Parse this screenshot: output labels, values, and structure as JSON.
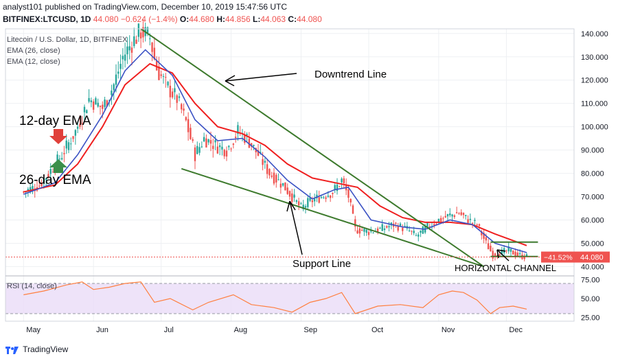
{
  "header": {
    "published_line": "analyst101 published on TradingView.com, December 10, 2019 15:47:56 UTC",
    "symbol": "BITFINEX:LTCUSD, 1D",
    "last": "44.080",
    "change": "−0.624 (−1.4%)",
    "o_label": "O:",
    "o": "44.680",
    "h_label": "H:",
    "h": "44.856",
    "l_label": "L:",
    "l": "44.063",
    "c_label": "C:",
    "c": "44.080"
  },
  "legend": {
    "title": "Litecoin / U.S. Dollar, 1D, BITFINEX",
    "ema26": "EMA (26, close)",
    "ema12": "EMA (12, close)",
    "rsi": "RSI (14, close)"
  },
  "annotations": {
    "downtrend": "Downtrend Line",
    "ema12": "12-day EMA",
    "ema26": "26-day EMA",
    "support": "Support Line",
    "channel": "HORIZONTAL CHANNEL"
  },
  "price_badge": {
    "pct": "−41.52%",
    "price": "44.080"
  },
  "footer": {
    "brand": "TradingView"
  },
  "colors": {
    "ema26": "#ef1f1f",
    "ema12": "#3b52c4",
    "trendline": "#3d7a2d",
    "up": "#26a69a",
    "down": "#ef5350",
    "rsi": "#ff7f3f",
    "rsi_band": "#eadcf7"
  },
  "chart_data": [
    {
      "type": "candlestick",
      "title": "Litecoin / U.S. Dollar, 1D, BITFINEX",
      "x": [
        "May",
        "Jun",
        "Jul",
        "Aug",
        "Sep",
        "Oct",
        "Nov",
        "Dec"
      ],
      "y_ticks": [
        40,
        50,
        60,
        70,
        80,
        90,
        100,
        110,
        120,
        130,
        140
      ],
      "y_tick_labels": [
        "40.000",
        "50.000",
        "60.000",
        "70.000",
        "80.000",
        "90.000",
        "100.000",
        "110.000",
        "120.000",
        "130.000",
        "140.000"
      ],
      "ylim": [
        36,
        142
      ],
      "grid": true,
      "close_path": [
        [
          "2019-05-01",
          72
        ],
        [
          "2019-05-08",
          75
        ],
        [
          "2019-05-12",
          80
        ],
        [
          "2019-05-18",
          88
        ],
        [
          "2019-05-24",
          98
        ],
        [
          "2019-05-30",
          112
        ],
        [
          "2019-06-05",
          108
        ],
        [
          "2019-06-10",
          118
        ],
        [
          "2019-06-14",
          130
        ],
        [
          "2019-06-18",
          136
        ],
        [
          "2019-06-22",
          141
        ],
        [
          "2019-06-26",
          138
        ],
        [
          "2019-06-29",
          125
        ],
        [
          "2019-07-03",
          118
        ],
        [
          "2019-07-08",
          112
        ],
        [
          "2019-07-12",
          102
        ],
        [
          "2019-07-16",
          88
        ],
        [
          "2019-07-20",
          95
        ],
        [
          "2019-07-25",
          92
        ],
        [
          "2019-07-30",
          90
        ],
        [
          "2019-08-04",
          98
        ],
        [
          "2019-08-08",
          95
        ],
        [
          "2019-08-13",
          88
        ],
        [
          "2019-08-18",
          80
        ],
        [
          "2019-08-24",
          75
        ],
        [
          "2019-08-28",
          70
        ],
        [
          "2019-09-01",
          65
        ],
        [
          "2019-09-05",
          68
        ],
        [
          "2019-09-10",
          70
        ],
        [
          "2019-09-15",
          72
        ],
        [
          "2019-09-19",
          77
        ],
        [
          "2019-09-22",
          70
        ],
        [
          "2019-09-25",
          56
        ],
        [
          "2019-10-01",
          55
        ],
        [
          "2019-10-06",
          56
        ],
        [
          "2019-10-12",
          58
        ],
        [
          "2019-10-18",
          56
        ],
        [
          "2019-10-22",
          53
        ],
        [
          "2019-10-27",
          57
        ],
        [
          "2019-11-01",
          60
        ],
        [
          "2019-11-06",
          62
        ],
        [
          "2019-11-10",
          63
        ],
        [
          "2019-11-14",
          60
        ],
        [
          "2019-11-18",
          58
        ],
        [
          "2019-11-22",
          50
        ],
        [
          "2019-11-25",
          45
        ],
        [
          "2019-11-29",
          46
        ],
        [
          "2019-12-02",
          47
        ],
        [
          "2019-12-06",
          45
        ],
        [
          "2019-12-10",
          44.08
        ]
      ],
      "ema26": [
        [
          "2019-05-01",
          72
        ],
        [
          "2019-05-15",
          75
        ],
        [
          "2019-05-25",
          84
        ],
        [
          "2019-06-05",
          100
        ],
        [
          "2019-06-15",
          118
        ],
        [
          "2019-06-26",
          127
        ],
        [
          "2019-07-06",
          123
        ],
        [
          "2019-07-16",
          110
        ],
        [
          "2019-07-26",
          100
        ],
        [
          "2019-08-06",
          97
        ],
        [
          "2019-08-16",
          92
        ],
        [
          "2019-08-26",
          84
        ],
        [
          "2019-09-06",
          78
        ],
        [
          "2019-09-16",
          76
        ],
        [
          "2019-09-26",
          74
        ],
        [
          "2019-10-06",
          66
        ],
        [
          "2019-10-16",
          61
        ],
        [
          "2019-10-26",
          59
        ],
        [
          "2019-11-06",
          59
        ],
        [
          "2019-11-16",
          58
        ],
        [
          "2019-11-26",
          54
        ],
        [
          "2019-12-10",
          49
        ]
      ],
      "ema12": [
        [
          "2019-05-01",
          71
        ],
        [
          "2019-05-15",
          76
        ],
        [
          "2019-05-25",
          88
        ],
        [
          "2019-06-05",
          105
        ],
        [
          "2019-06-15",
          124
        ],
        [
          "2019-06-24",
          133
        ],
        [
          "2019-07-06",
          122
        ],
        [
          "2019-07-16",
          103
        ],
        [
          "2019-07-26",
          94
        ],
        [
          "2019-08-06",
          95
        ],
        [
          "2019-08-16",
          87
        ],
        [
          "2019-08-26",
          77
        ],
        [
          "2019-09-06",
          69
        ],
        [
          "2019-09-16",
          73
        ],
        [
          "2019-09-22",
          74
        ],
        [
          "2019-10-02",
          60
        ],
        [
          "2019-10-16",
          57
        ],
        [
          "2019-10-26",
          56
        ],
        [
          "2019-11-06",
          60
        ],
        [
          "2019-11-16",
          58
        ],
        [
          "2019-11-26",
          50
        ],
        [
          "2019-12-10",
          46
        ]
      ],
      "downtrend_line": [
        [
          "2019-06-22",
          142
        ],
        [
          "2019-11-21",
          40
        ]
      ],
      "support_line": [
        [
          "2019-07-10",
          82
        ],
        [
          "2019-11-21",
          40
        ]
      ],
      "channel_lines": [
        [
          [
            "2019-11-24",
            50.5
          ],
          [
            "2019-12-15",
            50.5
          ]
        ],
        [
          [
            "2019-11-24",
            44.3
          ],
          [
            "2019-12-15",
            44.3
          ]
        ]
      ],
      "last_price": 44.08
    },
    {
      "type": "line",
      "title": "RSI (14, close)",
      "y_ticks": [
        25,
        50,
        75
      ],
      "y_tick_labels": [
        "25.00",
        "50.00",
        "75.00"
      ],
      "ylim": [
        20,
        80
      ],
      "band": [
        30,
        70
      ],
      "series": [
        {
          "name": "RSI (14, close)",
          "values": [
            [
              "2019-05-01",
              55
            ],
            [
              "2019-05-10",
              60
            ],
            [
              "2019-05-20",
              68
            ],
            [
              "2019-05-27",
              72
            ],
            [
              "2019-06-01",
              62
            ],
            [
              "2019-06-08",
              65
            ],
            [
              "2019-06-15",
              70
            ],
            [
              "2019-06-22",
              72
            ],
            [
              "2019-06-28",
              45
            ],
            [
              "2019-07-05",
              50
            ],
            [
              "2019-07-15",
              35
            ],
            [
              "2019-07-22",
              45
            ],
            [
              "2019-08-02",
              55
            ],
            [
              "2019-08-10",
              42
            ],
            [
              "2019-08-20",
              38
            ],
            [
              "2019-08-28",
              32
            ],
            [
              "2019-09-05",
              45
            ],
            [
              "2019-09-12",
              50
            ],
            [
              "2019-09-19",
              58
            ],
            [
              "2019-09-25",
              30
            ],
            [
              "2019-10-05",
              40
            ],
            [
              "2019-10-15",
              42
            ],
            [
              "2019-10-25",
              38
            ],
            [
              "2019-11-01",
              55
            ],
            [
              "2019-11-07",
              60
            ],
            [
              "2019-11-12",
              58
            ],
            [
              "2019-11-18",
              48
            ],
            [
              "2019-11-24",
              30
            ],
            [
              "2019-11-28",
              38
            ],
            [
              "2019-12-04",
              40
            ],
            [
              "2019-12-10",
              36
            ]
          ]
        }
      ]
    }
  ]
}
